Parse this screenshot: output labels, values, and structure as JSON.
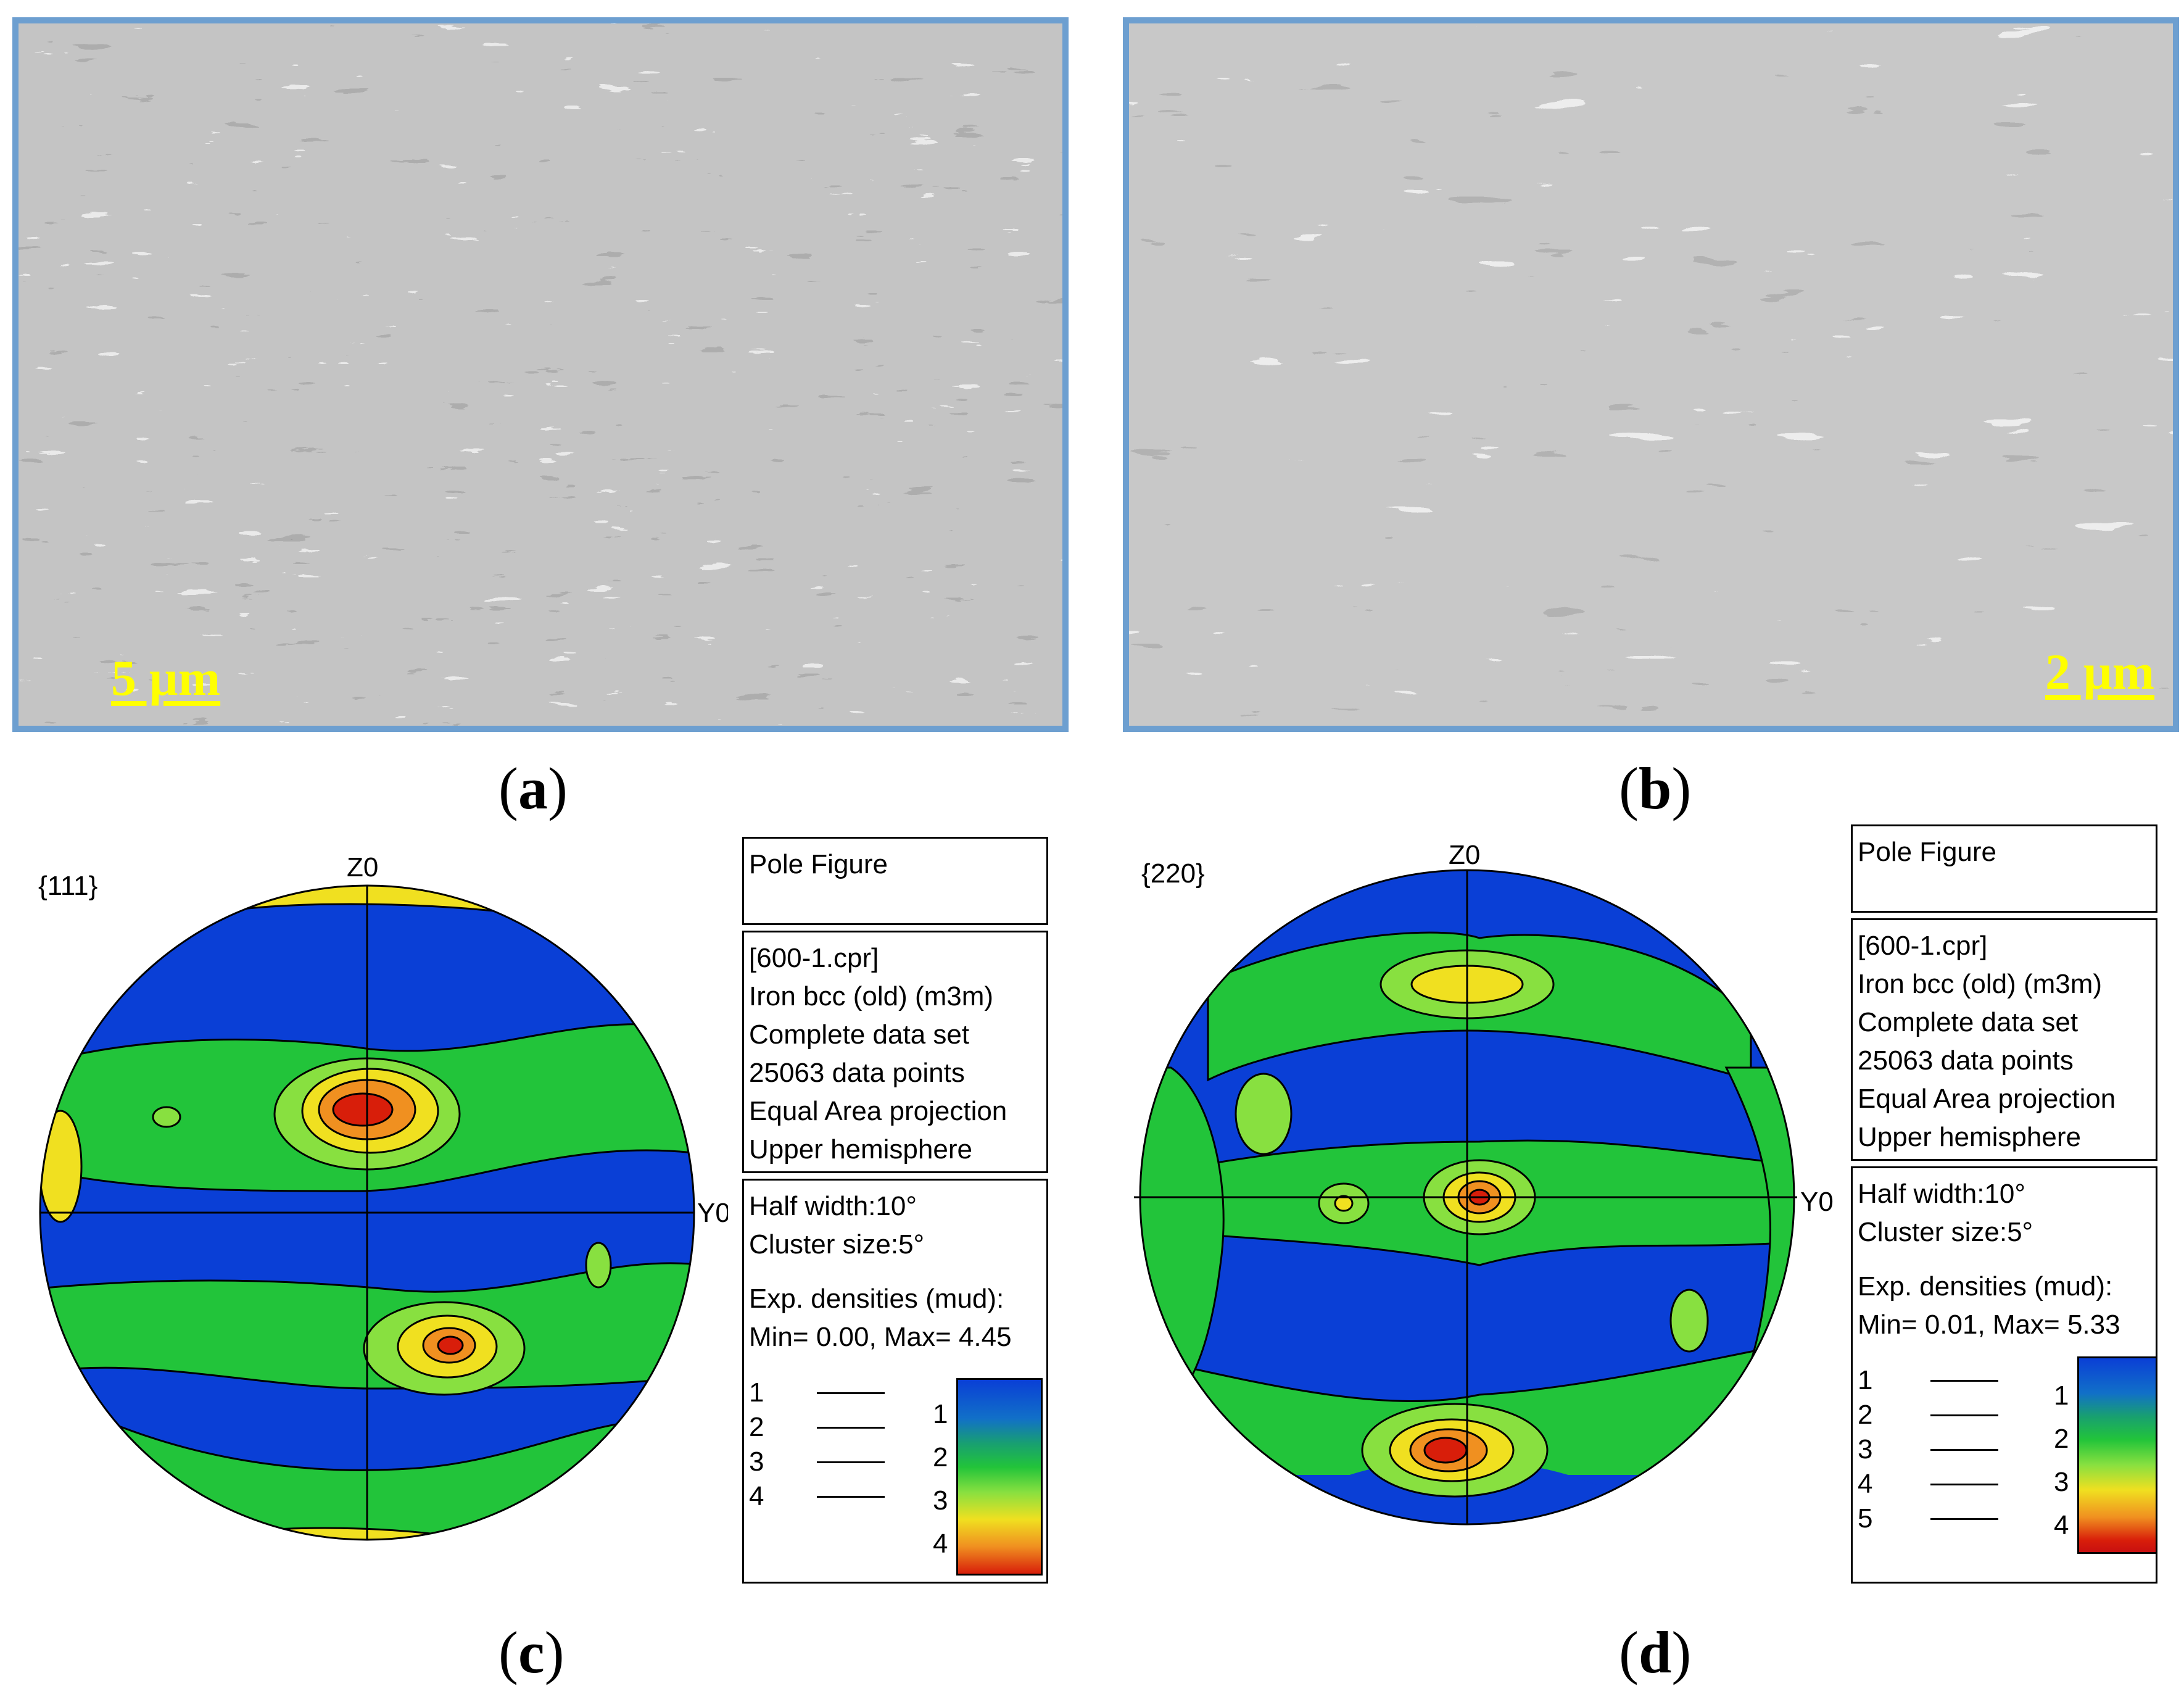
{
  "panels": {
    "a": {
      "label_open": "(",
      "label_letter": "a",
      "label_close": ")",
      "scale_bar": "5 µm"
    },
    "b": {
      "label_open": "(",
      "label_letter": "b",
      "label_close": ")",
      "scale_bar": "2 µm"
    },
    "c": {
      "label_open": "(",
      "label_letter": "c",
      "label_close": ")",
      "plane": "{111}",
      "axis_top": "Z0",
      "axis_right": "Y0",
      "box1": {
        "line1": "Pole Figure"
      },
      "box2": {
        "line1": "[600-1.cpr]",
        "line2": "Iron bcc (old) (m3m)",
        "line3": "Complete data set",
        "line4": "25063 data points",
        "line5": "Equal Area projection",
        "line6": "Upper hemisphere"
      },
      "box3": {
        "line1": "Half width:10°",
        "line2": "Cluster size:5°",
        "line3": "Exp. densities (mud):",
        "line4": "Min= 0.00, Max= 4.45"
      },
      "contour_levels": [
        "1",
        "2",
        "3",
        "4"
      ],
      "colorbar_ticks": [
        "1",
        "2",
        "3",
        "4"
      ]
    },
    "d": {
      "label_open": "(",
      "label_letter": "d",
      "label_close": ")",
      "plane": "{220}",
      "axis_top": "Z0",
      "axis_right": "Y0",
      "box1": {
        "line1": "Pole Figure"
      },
      "box2": {
        "line1": "[600-1.cpr]",
        "line2": "Iron bcc (old) (m3m)",
        "line3": "Complete data set",
        "line4": "25063 data points",
        "line5": "Equal Area projection",
        "line6": "Upper hemisphere"
      },
      "box3": {
        "line1": "Half width:10°",
        "line2": "Cluster size:5°",
        "line3": "Exp. densities (mud):",
        "line4": "Min= 0.01, Max= 5.33"
      },
      "contour_levels": [
        "1",
        "2",
        "3",
        "4",
        "5"
      ],
      "colorbar_ticks": [
        "1",
        "2",
        "3",
        "4"
      ]
    }
  },
  "colors": {
    "frame": "#6d9fd0",
    "scale_bar": "#ffff00",
    "density_low": "#0a3fd6",
    "density_mid": "#22c43a",
    "density_high": "#f0e020",
    "density_max": "#d81e0a"
  }
}
